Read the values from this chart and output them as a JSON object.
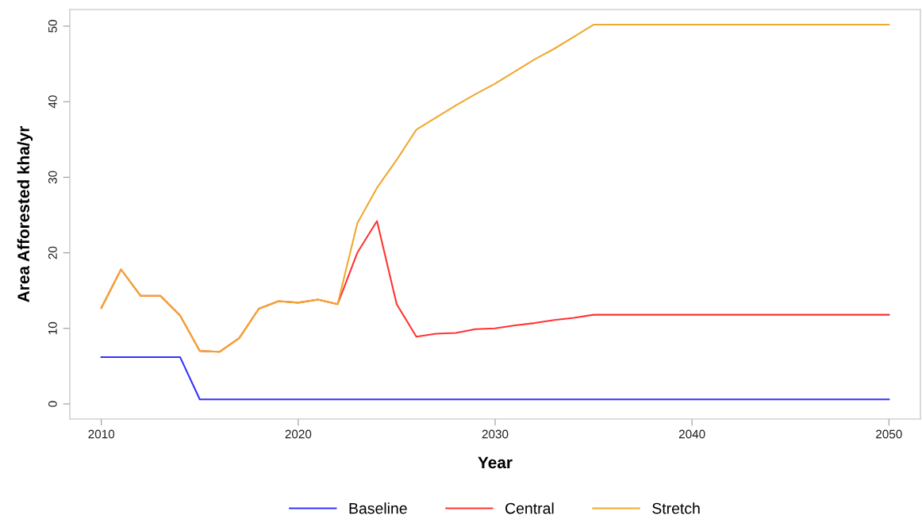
{
  "chart_data": {
    "type": "line",
    "xlabel": "Year",
    "ylabel": "Area Afforested kha/yr",
    "xlim": [
      2008.4,
      2051.6
    ],
    "ylim": [
      -2.0,
      52.2
    ],
    "xticks": [
      2010,
      2020,
      2030,
      2040,
      2050
    ],
    "yticks": [
      0,
      10,
      20,
      30,
      40,
      50
    ],
    "grid": false,
    "legend": "bottom",
    "marker": "none",
    "line_style": "solid",
    "series": [
      {
        "name": "Baseline",
        "color": "#3333ff",
        "x": [
          2010,
          2014,
          2015,
          2050
        ],
        "values": [
          6.2,
          6.2,
          0.6,
          0.6
        ]
      },
      {
        "name": "Central",
        "color": "#ff3333",
        "x": [
          2010,
          2011,
          2012,
          2013,
          2014,
          2015,
          2016,
          2017,
          2018,
          2019,
          2020,
          2021,
          2022,
          2023,
          2024,
          2025,
          2026,
          2027,
          2028,
          2029,
          2030,
          2031,
          2032,
          2033,
          2034,
          2035,
          2050
        ],
        "values": [
          12.7,
          17.8,
          14.3,
          14.3,
          11.7,
          7.0,
          6.9,
          8.7,
          12.6,
          13.6,
          13.4,
          13.8,
          13.2,
          20.0,
          24.2,
          13.2,
          8.9,
          9.3,
          9.4,
          9.9,
          10.0,
          10.4,
          10.7,
          11.1,
          11.4,
          11.8,
          11.8
        ]
      },
      {
        "name": "Stretch",
        "color": "#f0a830",
        "x": [
          2010,
          2011,
          2012,
          2013,
          2014,
          2015,
          2016,
          2017,
          2018,
          2019,
          2020,
          2021,
          2022,
          2023,
          2024,
          2025,
          2026,
          2027,
          2028,
          2029,
          2030,
          2031,
          2032,
          2033,
          2034,
          2035,
          2050
        ],
        "values": [
          12.7,
          17.8,
          14.3,
          14.3,
          11.7,
          7.0,
          6.9,
          8.7,
          12.6,
          13.6,
          13.4,
          13.8,
          13.2,
          23.9,
          28.6,
          32.3,
          36.3,
          37.9,
          39.5,
          41.0,
          42.4,
          44.0,
          45.6,
          47.0,
          48.6,
          50.2,
          50.2
        ]
      }
    ]
  }
}
